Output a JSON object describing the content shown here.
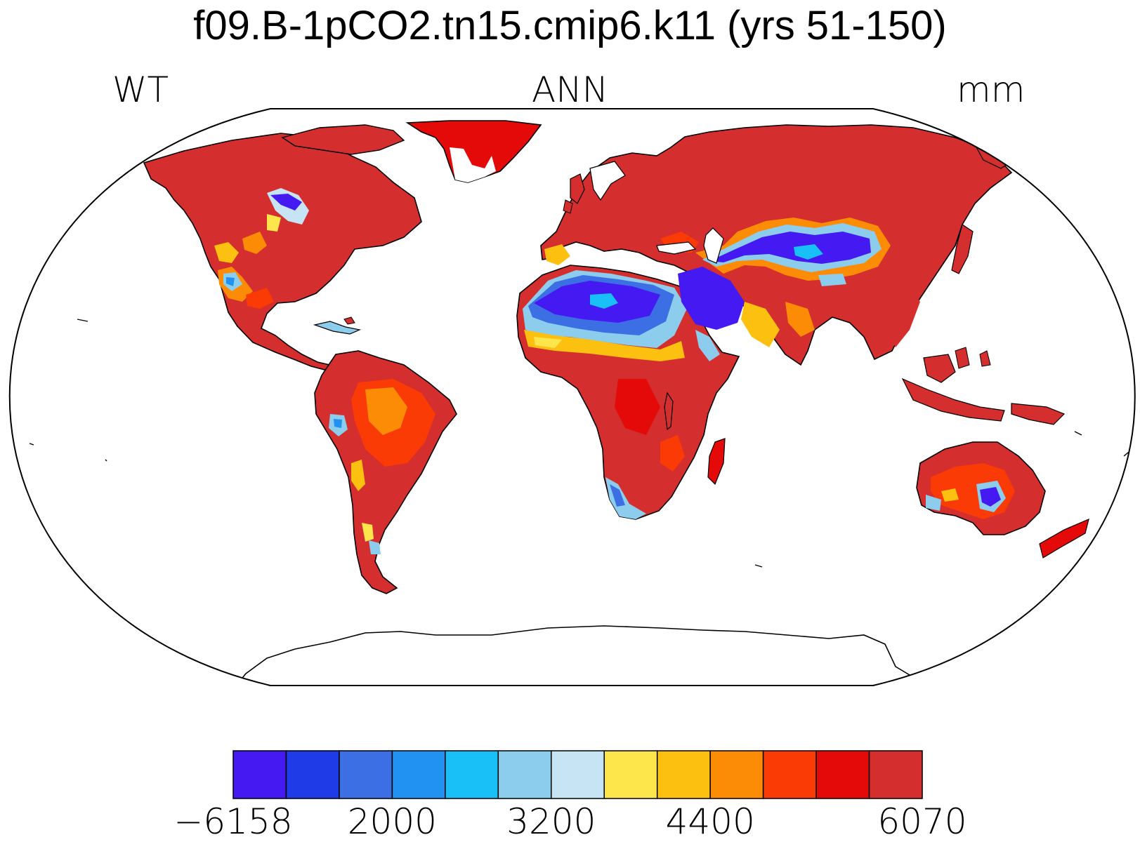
{
  "title": "f09.B-1pCO2.tn15.cmip6.k11 (yrs 51-150)",
  "left_label": "WT",
  "center_label": "ANN",
  "right_label": "mm",
  "colorbar": {
    "colors": [
      "#4419f2",
      "#1f3be8",
      "#3b6fe3",
      "#2191f2",
      "#19c0f7",
      "#8ccdee",
      "#c6e4f4",
      "#fde64b",
      "#fcc010",
      "#fc8c05",
      "#fb3b05",
      "#e40a0a",
      "#d42e2e"
    ],
    "labels": [
      {
        "text": "−6158",
        "boundary": 0
      },
      {
        "text": "2000",
        "boundary": 3
      },
      {
        "text": "3200",
        "boundary": 6
      },
      {
        "text": "4400",
        "boundary": 9
      },
      {
        "text": "6070",
        "boundary": 13
      }
    ]
  }
}
